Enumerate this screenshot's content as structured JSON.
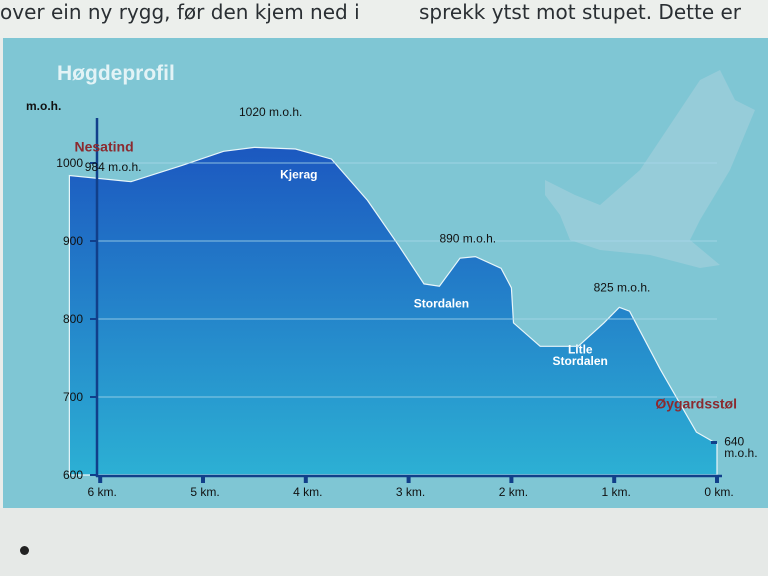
{
  "header_text": {
    "left": "over ein ny rygg, før den kjem ned i",
    "right": "sprekk ytst mot stupet. Dette er"
  },
  "colors": {
    "panel": "#7fc6d4",
    "profile_top": "#1f63c4",
    "profile_bottom": "#2aa0cf",
    "place_name": "#8b2a2f"
  },
  "chart_data": {
    "type": "area",
    "title": "Høgdeprofil",
    "ylabel": "m.o.h.",
    "xlabel": "",
    "x_reversed": true,
    "xlim": [
      6.3,
      0
    ],
    "ylim": [
      600,
      1040
    ],
    "grid": true,
    "yticks": [
      {
        "value": 1000,
        "label": "1000"
      },
      {
        "value": 900,
        "label": "900"
      },
      {
        "value": 800,
        "label": "800"
      },
      {
        "value": 700,
        "label": "700"
      },
      {
        "value": 600,
        "label": "600"
      }
    ],
    "xticks": [
      {
        "value": 6,
        "label": "6 km."
      },
      {
        "value": 5,
        "label": "5 km."
      },
      {
        "value": 4,
        "label": "4 km."
      },
      {
        "value": 3,
        "label": "3 km."
      },
      {
        "value": 2,
        "label": "2 km."
      },
      {
        "value": 1,
        "label": "1 km."
      },
      {
        "value": 0,
        "label": "0 km."
      }
    ],
    "x": [
      6.3,
      5.7,
      5.2,
      4.8,
      4.5,
      4.1,
      3.75,
      3.4,
      3.1,
      2.85,
      2.7,
      2.5,
      2.35,
      2.1,
      2.0,
      1.98,
      1.72,
      1.35,
      1.1,
      0.95,
      0.85,
      0.55,
      0.2,
      0.0
    ],
    "y": [
      984,
      976,
      997,
      1015,
      1020,
      1018,
      1005,
      952,
      895,
      845,
      842,
      878,
      880,
      865,
      840,
      795,
      765,
      765,
      795,
      815,
      810,
      735,
      655,
      640
    ],
    "annotations": [
      {
        "text": "Nesatind",
        "km": 6.25,
        "m": 1015,
        "kind": "place"
      },
      {
        "text": "984 m.o.h.",
        "km": 6.15,
        "m": 990,
        "kind": "value"
      },
      {
        "text": "1020 m.o.h.",
        "km": 4.65,
        "m": 1060,
        "kind": "value"
      },
      {
        "text": "Kjerag",
        "km": 4.25,
        "m": 980,
        "kind": "valley"
      },
      {
        "text": "890 m.o.h.",
        "km": 2.7,
        "m": 898,
        "kind": "value"
      },
      {
        "text": "Stordalen",
        "km": 2.95,
        "m": 815,
        "kind": "valley"
      },
      {
        "text": "825 m.o.h.",
        "km": 1.2,
        "m": 835,
        "kind": "value"
      },
      {
        "text": "Litle",
        "km": 1.45,
        "m": 756,
        "kind": "valley"
      },
      {
        "text": "Stordalen",
        "km": 1.6,
        "m": 741,
        "kind": "valley"
      },
      {
        "text": "Øygardsstøl",
        "km": 0.6,
        "m": 685,
        "kind": "place"
      },
      {
        "text": "640",
        "km": -0.07,
        "m": 638,
        "kind": "value"
      },
      {
        "text": "m.o.h.",
        "km": -0.07,
        "m": 623,
        "kind": "value"
      }
    ]
  }
}
